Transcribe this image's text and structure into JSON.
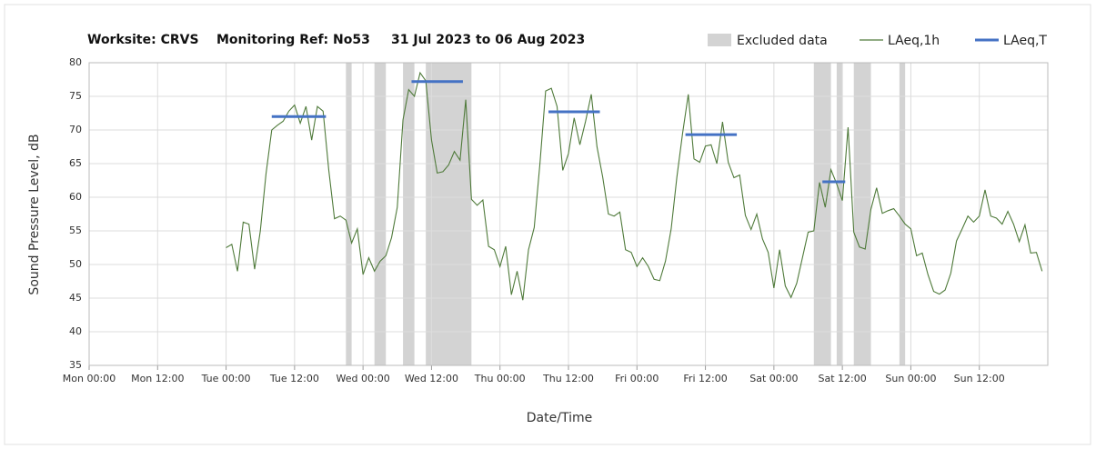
{
  "chart_data": {
    "type": "line",
    "title": [
      "Worksite: CRVS",
      "Monitoring Ref: No53",
      "31 Jul 2023 to 06 Aug 2023"
    ],
    "xlabel": "Date/Time",
    "ylabel": "Sound Pressure Level, dB",
    "xlim": [
      0,
      168
    ],
    "ylim": [
      35,
      80
    ],
    "yticks": [
      35,
      40,
      45,
      50,
      55,
      60,
      65,
      70,
      75,
      80
    ],
    "xticks": [
      {
        "value": 0,
        "label": "Mon 00:00"
      },
      {
        "value": 12,
        "label": "Mon 12:00"
      },
      {
        "value": 24,
        "label": "Tue 00:00"
      },
      {
        "value": 36,
        "label": "Tue 12:00"
      },
      {
        "value": 48,
        "label": "Wed 00:00"
      },
      {
        "value": 60,
        "label": "Wed 12:00"
      },
      {
        "value": 72,
        "label": "Thu 00:00"
      },
      {
        "value": 84,
        "label": "Thu 12:00"
      },
      {
        "value": 96,
        "label": "Fri 00:00"
      },
      {
        "value": 108,
        "label": "Fri 12:00"
      },
      {
        "value": 120,
        "label": "Sat 00:00"
      },
      {
        "value": 132,
        "label": "Sat 12:00"
      },
      {
        "value": 144,
        "label": "Sun 00:00"
      },
      {
        "value": 156,
        "label": "Sun 12:00"
      }
    ],
    "grid": true,
    "legend": "top-right",
    "excluded": {
      "name": "Excluded data",
      "color": "#d3d3d3",
      "ranges": [
        [
          45,
          46
        ],
        [
          50,
          52
        ],
        [
          55,
          57
        ],
        [
          59,
          67
        ],
        [
          127,
          130
        ],
        [
          131,
          132
        ],
        [
          134,
          137
        ],
        [
          142,
          143
        ]
      ]
    },
    "series": [
      {
        "name": "LAeq,1h",
        "color": "#4f7a3a",
        "x": [
          24,
          25,
          26,
          27,
          28,
          29,
          30,
          31,
          32,
          33,
          34,
          35,
          36,
          37,
          38,
          39,
          40,
          41,
          42,
          43,
          44,
          45,
          46,
          47,
          48,
          49,
          50,
          51,
          52,
          53,
          54,
          55,
          56,
          57,
          58,
          59,
          60,
          61,
          62,
          63,
          64,
          65,
          66,
          67,
          68,
          69,
          70,
          71,
          72,
          73,
          74,
          75,
          76,
          77,
          78,
          79,
          80,
          81,
          82,
          83,
          84,
          85,
          86,
          87,
          88,
          89,
          90,
          91,
          92,
          93,
          94,
          95,
          96,
          97,
          98,
          99,
          100,
          101,
          102,
          103,
          104,
          105,
          106,
          107,
          108,
          109,
          110,
          111,
          112,
          113,
          114,
          115,
          116,
          117,
          118,
          119,
          120,
          121,
          122,
          123,
          124,
          125,
          126,
          127,
          128,
          129,
          130,
          131,
          132,
          133,
          134,
          135,
          136,
          137,
          138,
          139,
          140,
          141,
          142,
          143,
          144,
          145,
          146,
          147,
          148,
          149,
          150,
          151,
          152,
          153,
          154,
          155,
          156,
          157,
          158,
          159,
          160,
          161,
          162,
          163,
          164,
          165,
          166,
          167
        ],
        "values": [
          52.5,
          53,
          49,
          56.3,
          56,
          49.3,
          55,
          63.5,
          70,
          70.7,
          71.3,
          72.8,
          73.7,
          71,
          73.5,
          68.5,
          73.5,
          72.8,
          64,
          56.8,
          57.2,
          56.6,
          53.2,
          55.3,
          48.5,
          51,
          49,
          50.5,
          51.3,
          54,
          58.5,
          71.5,
          76,
          75,
          78.5,
          77.3,
          68.5,
          63.6,
          63.8,
          64.8,
          66.8,
          65.5,
          74.5,
          59.7,
          58.8,
          59.6,
          52.7,
          52.2,
          49.7,
          52.7,
          45.5,
          49,
          44.7,
          52.2,
          55.5,
          65,
          75.8,
          76.2,
          73.5,
          64,
          66.5,
          71.8,
          67.8,
          71.3,
          75.3,
          67.5,
          63,
          57.5,
          57.2,
          57.8,
          52.2,
          51.8,
          49.7,
          51,
          49.7,
          47.8,
          47.6,
          50.5,
          55.3,
          63,
          69.5,
          75.3,
          65.7,
          65.2,
          67.6,
          67.8,
          65,
          71.2,
          65.2,
          62.9,
          63.3,
          57.3,
          55.2,
          57.5,
          53.8,
          51.8,
          46.5,
          52.2,
          46.8,
          45.1,
          47.2,
          51,
          54.8,
          55,
          62.2,
          58.5,
          64.1,
          62,
          59.5,
          70.4,
          54.8,
          52.6,
          52.3,
          58.2,
          61.4,
          57.6,
          58,
          58.3,
          57.2,
          56,
          55.3,
          51.3,
          51.7,
          48.5,
          46,
          45.6,
          46.2,
          48.7,
          53.5,
          55.3,
          57.2,
          56.3,
          57.2,
          61.1,
          57.2,
          56.9,
          56,
          57.9,
          56,
          53.4,
          55.9,
          51.7,
          51.8,
          49
        ]
      },
      {
        "name": "LAeq,T",
        "color": "#4472c4",
        "values": [
          72,
          77.2,
          72.7,
          69.3,
          62.3
        ],
        "x_ranges": [
          [
            32,
            41.5
          ],
          [
            56.5,
            65.5
          ],
          [
            80.5,
            89.5
          ],
          [
            104.5,
            113.5
          ],
          [
            128.5,
            132.5
          ]
        ]
      }
    ]
  }
}
